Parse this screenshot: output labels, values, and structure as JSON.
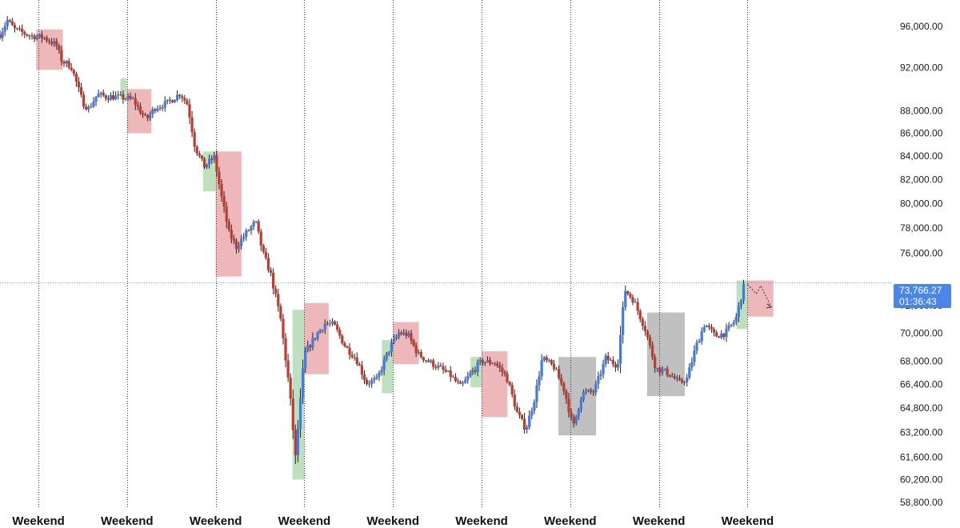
{
  "colors": {
    "candle_down": "#c0392b",
    "candle_up": "#3f7be0",
    "wick": "#222222",
    "zone_red": "#e8a0a4",
    "zone_green": "#a9d5a9",
    "zone_gray": "#a8a8a8",
    "current_line": "#5b8fe6",
    "price_tag_bg": "#4a86e8",
    "separator": "#333333"
  },
  "price_tag": {
    "price": "73,766.27",
    "countdown": "01:36:43"
  },
  "chart_data": {
    "type": "candlestick",
    "x_unit": "day",
    "x_range": [
      0,
      60
    ],
    "scale": "log",
    "y_range": [
      58800,
      98000
    ],
    "y_ticks": [
      {
        "value": 96000,
        "label": "96,000.00"
      },
      {
        "value": 92000,
        "label": "92,000.00"
      },
      {
        "value": 88000,
        "label": "88,000.00"
      },
      {
        "value": 86000,
        "label": "86,000.00"
      },
      {
        "value": 84000,
        "label": "84,000.00"
      },
      {
        "value": 82000,
        "label": "82,000.00"
      },
      {
        "value": 80000,
        "label": "80,000.00"
      },
      {
        "value": 78000,
        "label": "78,000.00"
      },
      {
        "value": 76000,
        "label": "76,000.00"
      },
      {
        "value": 72000,
        "label": "72,000.00"
      },
      {
        "value": 70000,
        "label": "70,000.00"
      },
      {
        "value": 68000,
        "label": "68,000.00"
      },
      {
        "value": 66400,
        "label": "66,400.00"
      },
      {
        "value": 64800,
        "label": "64,800.00"
      },
      {
        "value": 63200,
        "label": "63,200.00"
      },
      {
        "value": 61600,
        "label": "61,600.00"
      },
      {
        "value": 60200,
        "label": "60,200.00"
      },
      {
        "value": 58800,
        "label": "58,800.00"
      }
    ],
    "weekend_markers": [
      {
        "x": 2.6,
        "label": "Weekend"
      },
      {
        "x": 8.6,
        "label": "Weekend"
      },
      {
        "x": 14.6,
        "label": "Weekend"
      },
      {
        "x": 20.6,
        "label": "Weekend"
      },
      {
        "x": 26.6,
        "label": "Weekend"
      },
      {
        "x": 32.6,
        "label": "Weekend"
      },
      {
        "x": 38.6,
        "label": "Weekend"
      },
      {
        "x": 44.6,
        "label": "Weekend"
      },
      {
        "x": 50.6,
        "label": "Weekend"
      }
    ],
    "zones": [
      {
        "x0": 2.45,
        "x1": 4.25,
        "y_low": 91800,
        "y_high": 95700,
        "color": "red"
      },
      {
        "x0": 8.15,
        "x1": 8.6,
        "y_low": 89000,
        "y_high": 91000,
        "color": "green"
      },
      {
        "x0": 8.6,
        "x1": 10.25,
        "y_low": 86000,
        "y_high": 90000,
        "color": "red"
      },
      {
        "x0": 13.75,
        "x1": 14.6,
        "y_low": 81000,
        "y_high": 84400,
        "color": "green"
      },
      {
        "x0": 14.6,
        "x1": 16.35,
        "y_low": 74200,
        "y_high": 84400,
        "color": "red"
      },
      {
        "x0": 19.8,
        "x1": 20.6,
        "y_low": 60200,
        "y_high": 71700,
        "color": "green"
      },
      {
        "x0": 20.6,
        "x1": 22.25,
        "y_low": 67100,
        "y_high": 72200,
        "color": "red"
      },
      {
        "x0": 25.85,
        "x1": 26.6,
        "y_low": 65800,
        "y_high": 69500,
        "color": "green"
      },
      {
        "x0": 26.6,
        "x1": 28.35,
        "y_low": 67800,
        "y_high": 70800,
        "color": "red"
      },
      {
        "x0": 31.85,
        "x1": 32.6,
        "y_low": 66200,
        "y_high": 68300,
        "color": "green"
      },
      {
        "x0": 32.6,
        "x1": 34.35,
        "y_low": 64200,
        "y_high": 68700,
        "color": "red"
      },
      {
        "x0": 37.8,
        "x1": 40.35,
        "y_low": 63000,
        "y_high": 68300,
        "color": "gray"
      },
      {
        "x0": 43.8,
        "x1": 46.35,
        "y_low": 65600,
        "y_high": 71500,
        "color": "gray"
      },
      {
        "x0": 49.85,
        "x1": 50.6,
        "y_low": 70300,
        "y_high": 73900,
        "color": "green"
      },
      {
        "x0": 50.6,
        "x1": 52.35,
        "y_low": 71200,
        "y_high": 73900,
        "color": "red"
      }
    ],
    "anchors": [
      [
        0.0,
        95200
      ],
      [
        0.5,
        96600
      ],
      [
        1.0,
        95700
      ],
      [
        2.0,
        95100
      ],
      [
        3.0,
        94900
      ],
      [
        3.8,
        94200
      ],
      [
        4.2,
        92600
      ],
      [
        4.8,
        92200
      ],
      [
        5.6,
        88800
      ],
      [
        6.0,
        88200
      ],
      [
        6.6,
        89500
      ],
      [
        7.2,
        89300
      ],
      [
        7.8,
        89300
      ],
      [
        8.4,
        89200
      ],
      [
        9.0,
        89000
      ],
      [
        9.9,
        87200
      ],
      [
        10.5,
        88300
      ],
      [
        11.3,
        88700
      ],
      [
        12.2,
        89600
      ],
      [
        12.7,
        88600
      ],
      [
        13.2,
        84800
      ],
      [
        13.8,
        83100
      ],
      [
        14.5,
        83900
      ],
      [
        15.0,
        80500
      ],
      [
        15.5,
        77600
      ],
      [
        16.0,
        76500
      ],
      [
        16.6,
        77500
      ],
      [
        17.3,
        78500
      ],
      [
        17.8,
        76000
      ],
      [
        18.3,
        74500
      ],
      [
        19.0,
        71000
      ],
      [
        19.6,
        66000
      ],
      [
        20.0,
        61600
      ],
      [
        20.6,
        68500
      ],
      [
        21.3,
        69700
      ],
      [
        22.0,
        70700
      ],
      [
        22.6,
        70600
      ],
      [
        23.4,
        69000
      ],
      [
        24.1,
        68200
      ],
      [
        24.8,
        66500
      ],
      [
        25.5,
        66700
      ],
      [
        26.4,
        69000
      ],
      [
        27.0,
        70000
      ],
      [
        27.6,
        69900
      ],
      [
        28.3,
        68500
      ],
      [
        29.0,
        68000
      ],
      [
        29.8,
        67500
      ],
      [
        30.5,
        67000
      ],
      [
        31.2,
        66200
      ],
      [
        31.9,
        67200
      ],
      [
        32.6,
        68000
      ],
      [
        33.5,
        67900
      ],
      [
        34.3,
        66900
      ],
      [
        35.0,
        64500
      ],
      [
        35.6,
        63400
      ],
      [
        36.2,
        65500
      ],
      [
        36.7,
        68200
      ],
      [
        37.5,
        67600
      ],
      [
        38.2,
        66000
      ],
      [
        38.8,
        63500
      ],
      [
        39.4,
        65800
      ],
      [
        40.2,
        65900
      ],
      [
        41.0,
        68200
      ],
      [
        41.8,
        67700
      ],
      [
        42.3,
        73200
      ],
      [
        42.9,
        72400
      ],
      [
        43.7,
        70200
      ],
      [
        44.4,
        67500
      ],
      [
        45.2,
        67200
      ],
      [
        46.0,
        66500
      ],
      [
        46.5,
        66800
      ],
      [
        47.1,
        69000
      ],
      [
        47.7,
        70700
      ],
      [
        48.4,
        69800
      ],
      [
        49.1,
        70000
      ],
      [
        49.8,
        71000
      ],
      [
        50.4,
        73700
      ]
    ],
    "projection": [
      [
        50.6,
        73600
      ],
      [
        51.2,
        72900
      ],
      [
        51.5,
        73500
      ],
      [
        52.2,
        71900
      ]
    ],
    "current_price": 73766.27
  }
}
